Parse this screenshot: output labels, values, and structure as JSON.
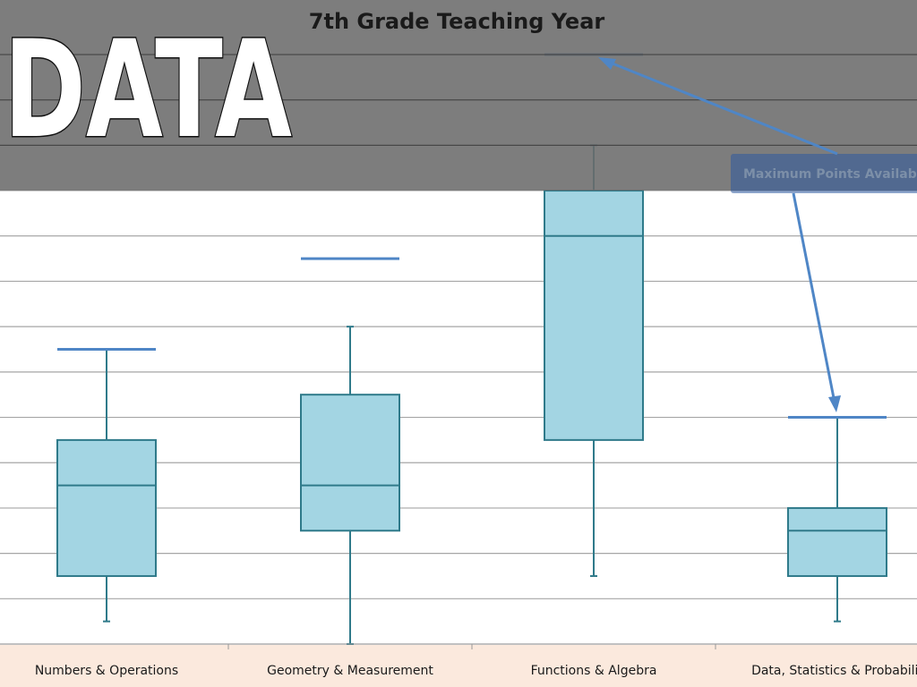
{
  "slide": {
    "big_title": "DATA",
    "callout": "Maximum Points Available"
  },
  "colors": {
    "box_fill": "#a3d5e3",
    "box_stroke": "#2f7a8a",
    "max_line": "#4f86c6",
    "grid": "#a6a6a6",
    "overlay": "#6b6b6b",
    "axis_band": "#fbe9dd",
    "callout_fill": "#2e5aa0"
  },
  "chart_data": {
    "type": "box",
    "title": "7th Grade Teaching Year",
    "categories": [
      "Numbers & Operations",
      "Geometry & Measurement",
      "Functions & Algebra",
      "Data, Statistics & Probabilit"
    ],
    "ylim": [
      0,
      13
    ],
    "grid": true,
    "boxes": [
      {
        "min": 0.5,
        "q1": 1.5,
        "median": 3.5,
        "q3": 4.5,
        "max": 6.5,
        "max_points": 6.5
      },
      {
        "min": 0,
        "q1": 2.5,
        "median": 3.5,
        "q3": 5.5,
        "max": 7,
        "max_points": 8.5
      },
      {
        "min": 1.5,
        "q1": 4.5,
        "median": 9,
        "q3": 10,
        "max": 11,
        "max_points": 13
      },
      {
        "min": 0.5,
        "q1": 1.5,
        "median": 2.5,
        "q3": 3,
        "max": 5,
        "max_points": 5
      }
    ]
  }
}
